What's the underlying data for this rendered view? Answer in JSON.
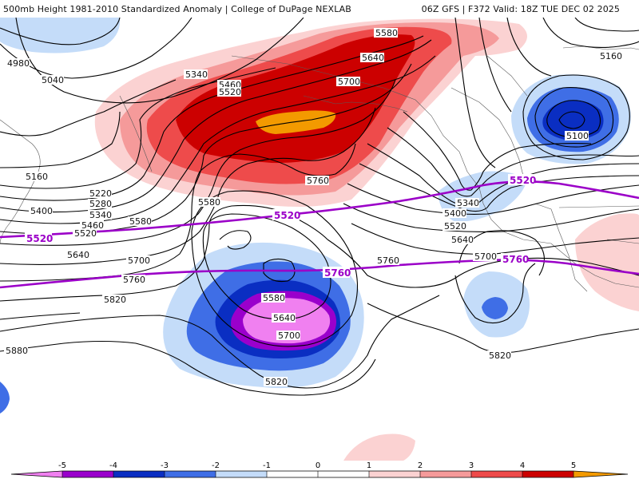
{
  "header": {
    "left_title": "500mb Height 1981-2010 Standardized Anomaly | College of DuPage NEXLAB",
    "right_title": "06Z GFS | F372 Valid: 18Z TUE DEC 02 2025"
  },
  "colors": {
    "neg5": "#f080f0",
    "neg4": "#9a00cc",
    "neg3": "#0a2ec2",
    "neg2": "#3f6ee6",
    "neg1": "#c4dcf9",
    "pos1": "#fbd2d2",
    "pos2": "#f59a9a",
    "pos3": "#ee4b4b",
    "pos4": "#cc0000",
    "pos5": "#f39a00",
    "climo_line": "#9b00c8",
    "contour": "#000000"
  },
  "contour_labels": [
    {
      "id": "c4980",
      "text": "4980"
    },
    {
      "id": "c5040",
      "text": "5040"
    },
    {
      "id": "c5160w",
      "text": "5160"
    },
    {
      "id": "c5220",
      "text": "5220"
    },
    {
      "id": "c5280",
      "text": "5280"
    },
    {
      "id": "c5340w",
      "text": "5340"
    },
    {
      "id": "c5400w",
      "text": "5400"
    },
    {
      "id": "c5460w",
      "text": "5460"
    },
    {
      "id": "c5520w",
      "text": "5520"
    },
    {
      "id": "c5580w",
      "text": "5580"
    },
    {
      "id": "c5640w",
      "text": "5640"
    },
    {
      "id": "c5700w",
      "text": "5700"
    },
    {
      "id": "c5760w",
      "text": "5760"
    },
    {
      "id": "c5820w",
      "text": "5820"
    },
    {
      "id": "c5880",
      "text": "5880"
    },
    {
      "id": "c5340n",
      "text": "5340"
    },
    {
      "id": "c5460n",
      "text": "5460"
    },
    {
      "id": "c5520n",
      "text": "5520"
    },
    {
      "id": "c5580n",
      "text": "5580"
    },
    {
      "id": "c5640n",
      "text": "5640"
    },
    {
      "id": "c5700n",
      "text": "5700"
    },
    {
      "id": "c5760n",
      "text": "5760"
    },
    {
      "id": "c5580m",
      "text": "5580"
    },
    {
      "id": "c5580s",
      "text": "5580"
    },
    {
      "id": "c5640s",
      "text": "5640"
    },
    {
      "id": "c5700s",
      "text": "5700"
    },
    {
      "id": "c5820s",
      "text": "5820"
    },
    {
      "id": "c5760m",
      "text": "5760"
    },
    {
      "id": "c5700e",
      "text": "5700"
    },
    {
      "id": "c5820e",
      "text": "5820"
    },
    {
      "id": "c5340e",
      "text": "5340"
    },
    {
      "id": "c5400e",
      "text": "5400"
    },
    {
      "id": "c5520e",
      "text": "5520"
    },
    {
      "id": "c5640e",
      "text": "5640"
    },
    {
      "id": "c5100",
      "text": "5100"
    },
    {
      "id": "c5160e",
      "text": "5160"
    }
  ],
  "climo_labels": [
    {
      "id": "p5520w",
      "text": "5520"
    },
    {
      "id": "p5520m",
      "text": "5520"
    },
    {
      "id": "p5520e",
      "text": "5520"
    },
    {
      "id": "p5760m",
      "text": "5760"
    },
    {
      "id": "p5760e",
      "text": "5760"
    }
  ],
  "colorbar": {
    "ticks": [
      "-5",
      "-4",
      "-3",
      "-2",
      "-1",
      "0",
      "1",
      "2",
      "3",
      "4",
      "5"
    ]
  }
}
